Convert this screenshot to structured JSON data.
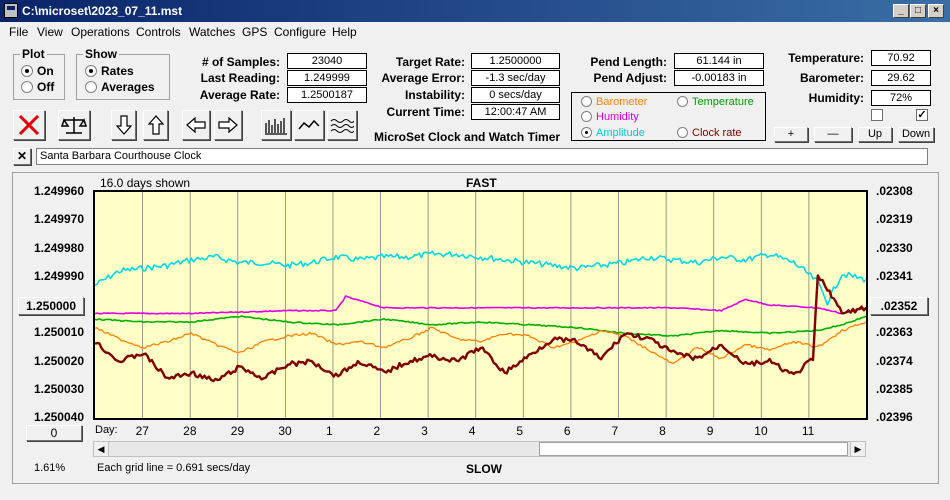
{
  "window": {
    "title": "C:\\microset\\2023_07_11.mst"
  },
  "menu": [
    "File",
    "View",
    "Operations",
    "Controls",
    "Watches",
    "GPS",
    "Configure",
    "Help"
  ],
  "plot_group": {
    "title": "Plot",
    "on_label": "On",
    "off_label": "Off",
    "selected": "On"
  },
  "show_group": {
    "title": "Show",
    "rates_label": "Rates",
    "averages_label": "Averages",
    "selected": "Rates"
  },
  "stats": {
    "samples_label": "# of Samples:",
    "samples": "23040",
    "last_reading_label": "Last Reading:",
    "last_reading": "1.249999",
    "average_rate_label": "Average Rate:",
    "average_rate": "1.2500187",
    "target_rate_label": "Target Rate:",
    "target_rate": "1.2500000",
    "average_error_label": "Average Error:",
    "average_error": "-1.3 sec/day",
    "instability_label": "Instability:",
    "instability": "0 secs/day",
    "current_time_label": "Current Time:",
    "current_time": "12:00:47 AM",
    "pend_length_label": "Pend Length:",
    "pend_length": "61.144 in",
    "pend_adjust_label": "Pend Adjust:",
    "pend_adjust": "-0.00183 in",
    "temperature_label": "Temperature:",
    "temperature": "70.92",
    "barometer_label": "Barometer:",
    "barometer": "29.62",
    "humidity_label": "Humidity:",
    "humidity": "72%"
  },
  "app_caption": "MicroSet Clock and Watch Timer",
  "series_options": {
    "barometer": "Barometer",
    "temperature": "Temperature",
    "humidity": "Humidity",
    "amplitude": "Amplitude",
    "clock_rate": "Clock rate",
    "selected": "Amplitude"
  },
  "adjust_buttons": {
    "plus": "+",
    "minus": "—",
    "up": "Up",
    "down": "Down"
  },
  "checkboxes": {
    "first": false,
    "second": true
  },
  "clock_name": "Santa Barbara Courthouse Clock",
  "colors": {
    "barometer": "#ff8000",
    "temperature": "#00b000",
    "humidity": "#e000e0",
    "amplitude": "#00d8e8",
    "clock_rate": "#800000",
    "plot_bg": "#ffffc8"
  },
  "chart_data": {
    "type": "line",
    "days_shown": "16.0 days shown",
    "top_label": "FAST",
    "bottom_label": "SLOW",
    "grid_note": "Each grid line = 0.691 secs/day",
    "x_axis_prefix": "Day:",
    "x_ticks": [
      "27",
      "28",
      "29",
      "30",
      "1",
      "2",
      "3",
      "4",
      "5",
      "6",
      "7",
      "8",
      "9",
      "10",
      "11"
    ],
    "xlim": [
      0,
      16
    ],
    "y_left_ticks": [
      "1.249960",
      "1.249970",
      "1.249980",
      "1.249990",
      "1.250000",
      "1.250010",
      "1.250020",
      "1.250030",
      "1.250040"
    ],
    "y_left_selected": "1.250000",
    "ylim": [
      1.24996,
      1.25004
    ],
    "y_right_ticks": [
      ".02308",
      ".02319",
      ".02330",
      ".02341",
      ".02352",
      ".02363",
      ".02374",
      ".02385",
      ".02396"
    ],
    "y_right_selected": ".02352",
    "bottom_left_button": "0",
    "percent": "1.61%",
    "series": [
      {
        "key": "amplitude",
        "x": [
          0,
          0.5,
          1,
          1.5,
          2,
          2.5,
          3,
          3.5,
          4,
          4.5,
          5,
          5.5,
          6,
          6.5,
          7,
          7.5,
          8,
          8.5,
          9,
          9.5,
          10,
          10.5,
          11,
          11.5,
          12,
          12.5,
          13,
          13.5,
          14,
          14.5,
          14.8,
          15.0,
          15.2,
          15.5,
          16
        ],
        "y": [
          1.249993,
          1.249988,
          1.249987,
          1.249986,
          1.249984,
          1.249983,
          1.249985,
          1.249985,
          1.249986,
          1.249985,
          1.249983,
          1.249984,
          1.249983,
          1.249983,
          1.249982,
          1.249982,
          1.249983,
          1.249984,
          1.249985,
          1.249986,
          1.249987,
          1.249986,
          1.249985,
          1.249983,
          1.249984,
          1.249985,
          1.249983,
          1.249984,
          1.249982,
          1.249985,
          1.249989,
          1.249992,
          1.249999,
          1.249989,
          1.249991
        ]
      },
      {
        "key": "humidity",
        "x": [
          0,
          2,
          4,
          5,
          5.2,
          6,
          8,
          10,
          12,
          13,
          13.5,
          14,
          15,
          15.5,
          16
        ],
        "y": [
          1.250003,
          1.250003,
          1.250002,
          1.250002,
          1.249997,
          1.250001,
          1.250001,
          1.250001,
          1.250001,
          1.250002,
          1.249998,
          1.25,
          1.250001,
          1.250003,
          1.250001
        ]
      },
      {
        "key": "temperature",
        "x": [
          0,
          1,
          2,
          3,
          4,
          5,
          6,
          7,
          8,
          9,
          10,
          10.5,
          11,
          12,
          13,
          14,
          15,
          15.5,
          16
        ],
        "y": [
          1.250005,
          1.250006,
          1.250006,
          1.250004,
          1.250006,
          1.250007,
          1.250005,
          1.250007,
          1.250006,
          1.250007,
          1.250008,
          1.250009,
          1.25001,
          1.250011,
          1.250009,
          1.25001,
          1.250009,
          1.250007,
          1.250004
        ]
      },
      {
        "key": "barometer",
        "x": [
          0,
          0.5,
          1,
          1.5,
          2,
          2.5,
          3,
          3.5,
          4,
          4.5,
          5,
          5.5,
          6,
          6.5,
          7,
          7.5,
          8,
          8.5,
          9,
          9.5,
          10,
          10.5,
          11,
          11.5,
          12,
          12.5,
          13,
          13.5,
          14,
          14.5,
          15,
          15.5,
          16
        ],
        "y": [
          1.250008,
          1.250012,
          1.250015,
          1.250013,
          1.25001,
          1.250014,
          1.250017,
          1.250013,
          1.250011,
          1.25001,
          1.250014,
          1.250013,
          1.250015,
          1.250012,
          1.250008,
          1.250012,
          1.250013,
          1.25001,
          1.250011,
          1.250015,
          1.250013,
          1.250009,
          1.250011,
          1.250016,
          1.250021,
          1.250015,
          1.250019,
          1.250014,
          1.250016,
          1.250013,
          1.250015,
          1.250009,
          1.250006
        ]
      },
      {
        "key": "clock_rate",
        "x": [
          0,
          0.5,
          1,
          1.5,
          2,
          2.5,
          3,
          3.5,
          4,
          4.5,
          5,
          5.5,
          6,
          6.5,
          7,
          7.5,
          8,
          8.5,
          9,
          9.5,
          10,
          10.5,
          11,
          11.5,
          12,
          12.5,
          13,
          13.5,
          14,
          14.5,
          14.9,
          15.0,
          15.2,
          15.5,
          16
        ],
        "y": [
          1.250013,
          1.25002,
          1.250017,
          1.250026,
          1.250024,
          1.250027,
          1.250022,
          1.250026,
          1.250021,
          1.25002,
          1.250025,
          1.25002,
          1.250024,
          1.25002,
          1.250018,
          1.25002,
          1.250015,
          1.250024,
          1.250018,
          1.250012,
          1.250013,
          1.250019,
          1.25001,
          1.250012,
          1.250017,
          1.250019,
          1.250014,
          1.250021,
          1.25002,
          1.250025,
          1.250019,
          1.24999,
          1.249994,
          1.250003,
          1.250001
        ]
      }
    ]
  }
}
